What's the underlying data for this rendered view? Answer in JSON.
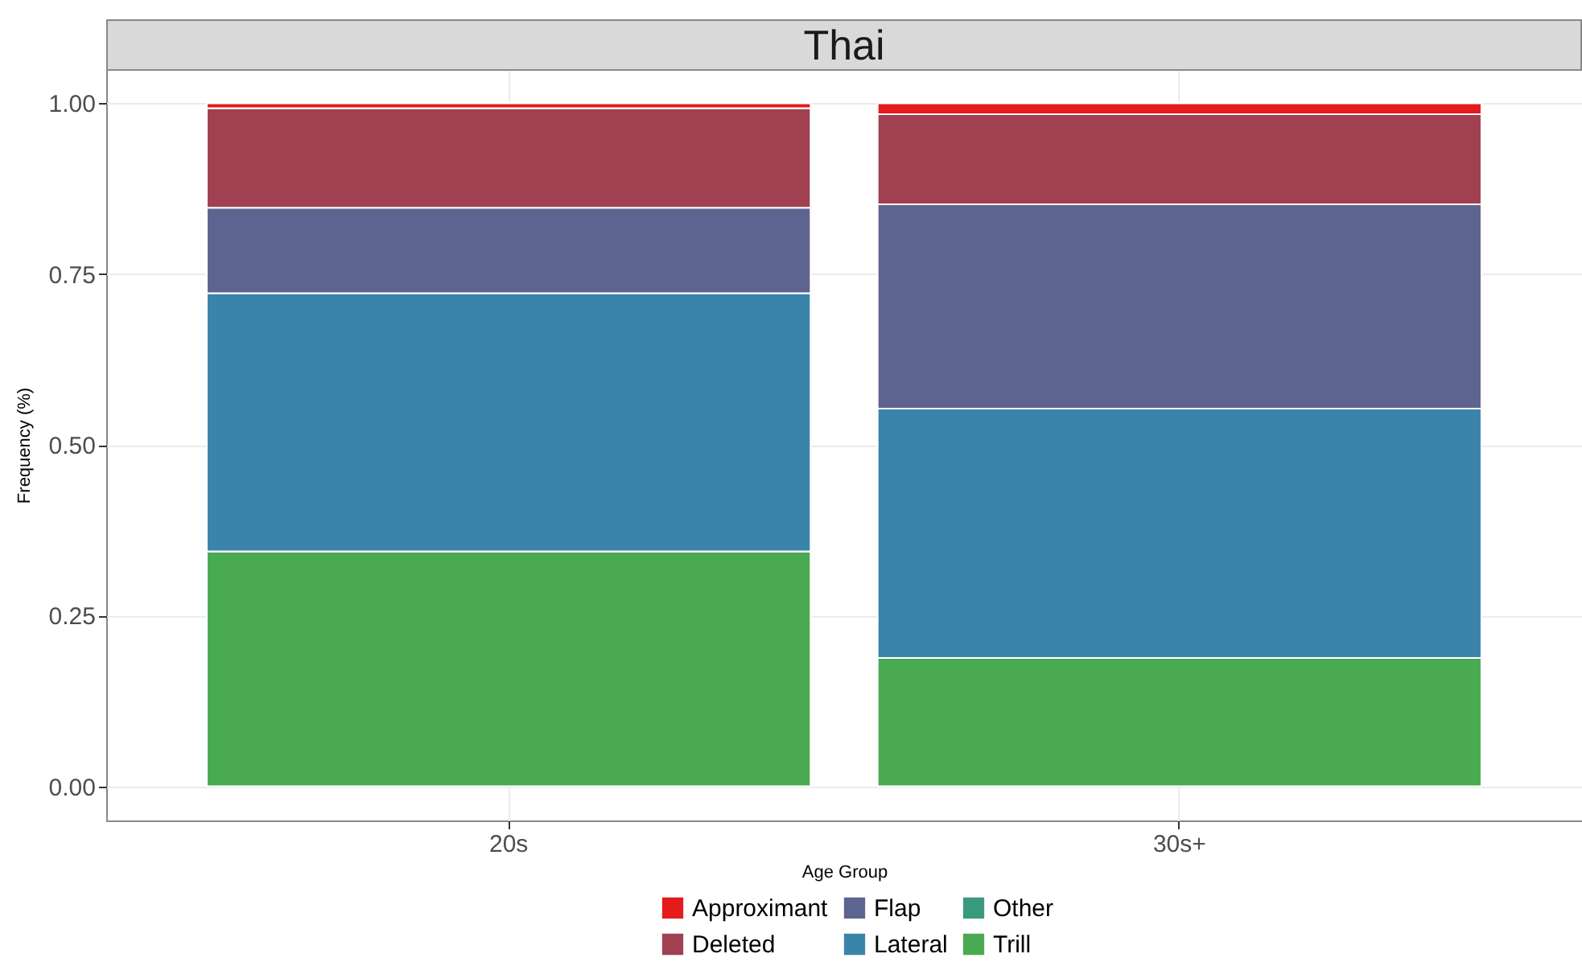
{
  "chart_data": {
    "type": "bar",
    "title": "Thai",
    "xlabel": "Age Group",
    "ylabel": "Frequency (%)",
    "categories": [
      "20s",
      "30s+"
    ],
    "stacked": true,
    "series": [
      {
        "name": "Trill",
        "color": "#4aaa52",
        "values": [
          0.344,
          0.188
        ]
      },
      {
        "name": "Other",
        "color": "#3a9a7e",
        "values": [
          0,
          0
        ]
      },
      {
        "name": "Lateral",
        "color": "#3a84aa",
        "values": [
          0.378,
          0.365
        ]
      },
      {
        "name": "Flap",
        "color": "#5d648f",
        "values": [
          0.125,
          0.299
        ]
      },
      {
        "name": "Deleted",
        "color": "#a04050",
        "values": [
          0.146,
          0.132
        ]
      },
      {
        "name": "Approximant",
        "color": "#e41a1c",
        "values": [
          0.007,
          0.016
        ]
      }
    ],
    "ylim": [
      -0.05,
      1.05
    ],
    "yticks": [
      {
        "value": 0,
        "label": "0.00"
      },
      {
        "value": 0.25,
        "label": "0.25"
      },
      {
        "value": 0.5,
        "label": "0.50"
      },
      {
        "value": 0.75,
        "label": "0.75"
      },
      {
        "value": 1,
        "label": "1.00"
      }
    ],
    "grid": true,
    "legend": "bottom"
  }
}
